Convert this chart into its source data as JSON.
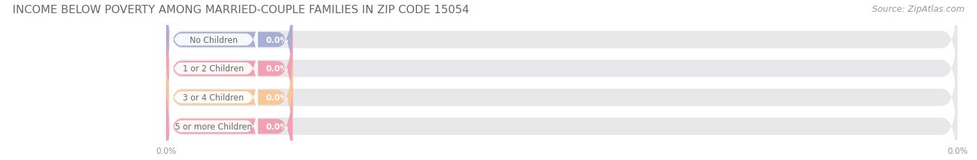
{
  "title": "INCOME BELOW POVERTY AMONG MARRIED-COUPLE FAMILIES IN ZIP CODE 15054",
  "source": "Source: ZipAtlas.com",
  "categories": [
    "No Children",
    "1 or 2 Children",
    "3 or 4 Children",
    "5 or more Children"
  ],
  "values": [
    0.0,
    0.0,
    0.0,
    0.0
  ],
  "bar_colors": [
    "#a8aed4",
    "#f2a0b4",
    "#f5c89a",
    "#f2a0b4"
  ],
  "bar_bg_color": "#e8e8ea",
  "title_fontsize": 11.5,
  "source_fontsize": 9,
  "tick_fontsize": 8.5,
  "cat_fontsize": 8.5,
  "val_fontsize": 8.5,
  "background_color": "#ffffff",
  "fig_width": 14.06,
  "fig_height": 2.32
}
